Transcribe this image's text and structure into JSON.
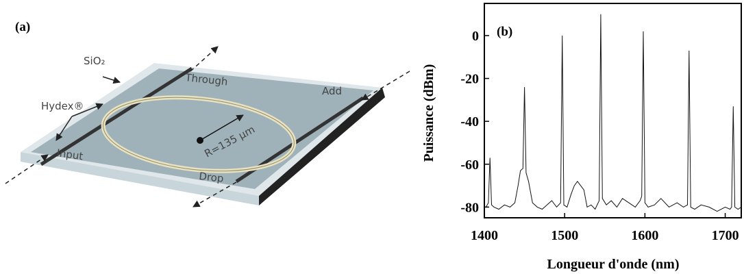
{
  "panel_a": {
    "label": "(a)",
    "cladding": "SiO₂",
    "core": "Hydex®",
    "through": "Through",
    "add": "Add",
    "input": "Input",
    "drop": "Drop",
    "radius": "R=135 µm"
  },
  "chart_data": {
    "type": "line",
    "label": "(b)",
    "xlabel": "Longueur d'onde (nm)",
    "ylabel": "Puissance (dBm)",
    "x": [
      1402,
      1405,
      1407,
      1409,
      1412,
      1418,
      1425,
      1432,
      1438,
      1442,
      1445,
      1448,
      1450,
      1452,
      1455,
      1460,
      1466,
      1472,
      1478,
      1484,
      1490,
      1495,
      1497,
      1499,
      1503,
      1508,
      1512,
      1516,
      1520,
      1524,
      1528,
      1533,
      1538,
      1543,
      1545,
      1547,
      1552,
      1558,
      1565,
      1572,
      1580,
      1588,
      1594,
      1596,
      1598,
      1600,
      1604,
      1612,
      1620,
      1630,
      1640,
      1648,
      1653,
      1655,
      1657,
      1662,
      1670,
      1680,
      1690,
      1700,
      1706,
      1708,
      1710,
      1712,
      1716,
      1720
    ],
    "series": [
      {
        "color": "#111111",
        "values": [
          -80,
          -78,
          -57,
          -79,
          -80,
          -81,
          -79,
          -80,
          -78,
          -70,
          -63,
          -62,
          -24,
          -64,
          -68,
          -78,
          -80,
          -81,
          -79,
          -77,
          -80,
          -78,
          0,
          -79,
          -80,
          -74,
          -70,
          -68,
          -70,
          -72,
          -80,
          -79,
          -81,
          -77,
          10,
          -76,
          -79,
          -77,
          -80,
          -76,
          -78,
          -80,
          -77,
          -75,
          2,
          -78,
          -80,
          -79,
          -76,
          -80,
          -78,
          -80,
          -79,
          -7,
          -80,
          -81,
          -79,
          -80,
          -82,
          -80,
          -81,
          -80,
          -33,
          -80,
          -81,
          -80
        ]
      }
    ],
    "xlim": [
      1400,
      1720
    ],
    "ylim": [
      -85,
      15
    ],
    "xticks": [
      1400,
      1500,
      1600,
      1700
    ],
    "yticks": [
      0,
      -20,
      -40,
      -60,
      -80
    ]
  }
}
